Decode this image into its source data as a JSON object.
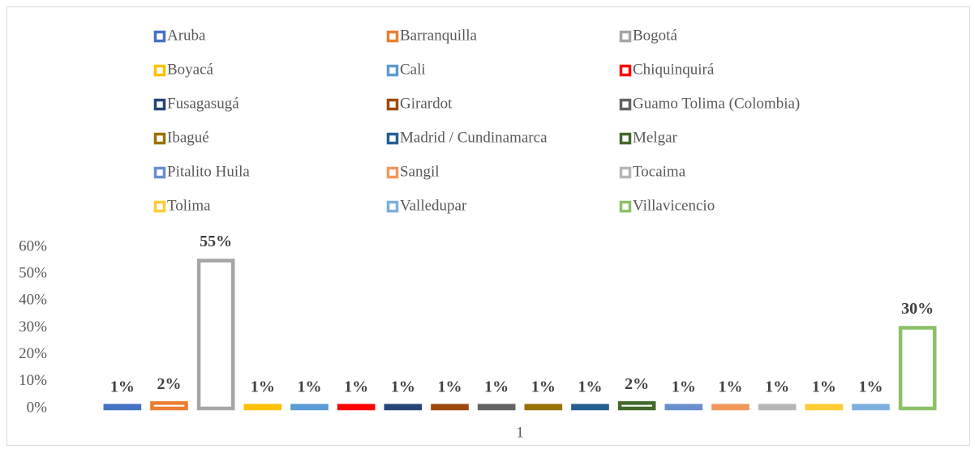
{
  "chart_data": {
    "type": "bar",
    "categories": [
      "1"
    ],
    "series": [
      {
        "name": "Aruba",
        "color": "#4472c4",
        "values": [
          1
        ],
        "value_labels": [
          "1%"
        ]
      },
      {
        "name": "Barranquilla",
        "color": "#ed7d31",
        "values": [
          2
        ],
        "value_labels": [
          "2%"
        ]
      },
      {
        "name": "Bogotá",
        "color": "#a5a5a5",
        "values": [
          55
        ],
        "value_labels": [
          "55%"
        ]
      },
      {
        "name": "Boyacá",
        "color": "#ffc000",
        "values": [
          1
        ],
        "value_labels": [
          "1%"
        ]
      },
      {
        "name": "Cali",
        "color": "#5b9bd5",
        "values": [
          1
        ],
        "value_labels": [
          "1%"
        ]
      },
      {
        "name": "Chiquinquirá",
        "color": "#ff0000",
        "values": [
          1
        ],
        "value_labels": [
          "1%"
        ]
      },
      {
        "name": "Fusagasugá",
        "color": "#264478",
        "values": [
          1
        ],
        "value_labels": [
          "1%"
        ]
      },
      {
        "name": "Girardot",
        "color": "#9e480e",
        "values": [
          1
        ],
        "value_labels": [
          "1%"
        ]
      },
      {
        "name": "Guamo Tolima (Colombia)",
        "color": "#636363",
        "values": [
          1
        ],
        "value_labels": [
          "1%"
        ]
      },
      {
        "name": "Ibagué",
        "color": "#997300",
        "values": [
          1
        ],
        "value_labels": [
          "1%"
        ]
      },
      {
        "name": "Madrid / Cundinamarca",
        "color": "#255e91",
        "values": [
          1
        ],
        "value_labels": [
          "1%"
        ]
      },
      {
        "name": "Melgar",
        "color": "#43682b",
        "values": [
          2
        ],
        "value_labels": [
          "2%"
        ]
      },
      {
        "name": "Pitalito Huila",
        "color": "#698ed0",
        "values": [
          1
        ],
        "value_labels": [
          "1%"
        ]
      },
      {
        "name": "Sangil",
        "color": "#f1975a",
        "values": [
          1
        ],
        "value_labels": [
          "1%"
        ]
      },
      {
        "name": "Tocaima",
        "color": "#b7b7b7",
        "values": [
          1
        ],
        "value_labels": [
          "1%"
        ]
      },
      {
        "name": "Tolima",
        "color": "#ffcd33",
        "values": [
          1
        ],
        "value_labels": [
          "1%"
        ]
      },
      {
        "name": "Valledupar",
        "color": "#7cafdd",
        "values": [
          1
        ],
        "value_labels": [
          "1%"
        ]
      },
      {
        "name": "Villavicencio",
        "color": "#8cc168",
        "values": [
          30
        ],
        "value_labels": [
          "30%"
        ]
      }
    ],
    "ylim": [
      0,
      60
    ],
    "yticks": [
      {
        "value": 0,
        "label": "0%"
      },
      {
        "value": 10,
        "label": "10%"
      },
      {
        "value": 20,
        "label": "20%"
      },
      {
        "value": 30,
        "label": "30%"
      },
      {
        "value": 40,
        "label": "40%"
      },
      {
        "value": 50,
        "label": "50%"
      },
      {
        "value": 60,
        "label": "60%"
      }
    ],
    "grid": false,
    "legend": "top"
  }
}
